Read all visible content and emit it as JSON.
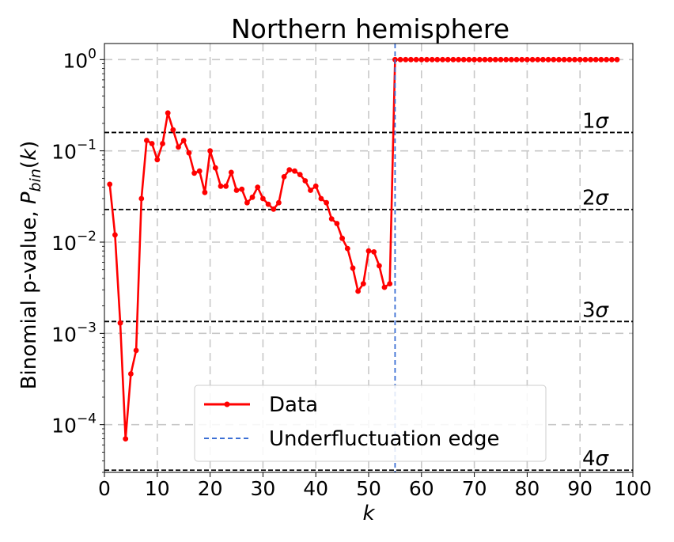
{
  "chart_data": {
    "type": "line",
    "title": "Northern hemisphere",
    "xlabel": "k",
    "ylabel": "Binomial p-value, P_bin(k)",
    "ylabel_parts": {
      "prefix": "Binomial p-value, ",
      "symbol": "P",
      "subscript": "bin",
      "arg_open": "(",
      "arg": "k",
      "arg_close": ")"
    },
    "xlim": [
      0,
      100
    ],
    "ylim": [
      3e-05,
      1.5
    ],
    "yscale": "log",
    "grid": true,
    "legend_position": "lower-center",
    "x_ticks": [
      0,
      10,
      20,
      30,
      40,
      50,
      60,
      70,
      80,
      90,
      100
    ],
    "x_tick_labels": [
      "0",
      "10",
      "20",
      "30",
      "40",
      "50",
      "60",
      "70",
      "80",
      "90",
      "100"
    ],
    "y_ticks": [
      0.0001,
      0.001,
      0.01,
      0.1,
      1
    ],
    "y_tick_labels": [
      {
        "base": "10",
        "exp": "−4"
      },
      {
        "base": "10",
        "exp": "−3"
      },
      {
        "base": "10",
        "exp": "−2"
      },
      {
        "base": "10",
        "exp": "−1"
      },
      {
        "base": "10",
        "exp": "0"
      }
    ],
    "series": [
      {
        "name": "Data",
        "color": "#ff0000",
        "x": [
          1,
          2,
          3,
          4,
          5,
          6,
          7,
          8,
          9,
          10,
          11,
          12,
          13,
          14,
          15,
          16,
          17,
          18,
          19,
          20,
          21,
          22,
          23,
          24,
          25,
          26,
          27,
          28,
          29,
          30,
          31,
          32,
          33,
          34,
          35,
          36,
          37,
          38,
          39,
          40,
          41,
          42,
          43,
          44,
          45,
          46,
          47,
          48,
          49,
          50,
          51,
          52,
          53,
          54,
          55,
          56,
          57,
          58,
          59,
          60,
          61,
          62,
          63,
          64,
          65,
          66,
          67,
          68,
          69,
          70,
          71,
          72,
          73,
          74,
          75,
          76,
          77,
          78,
          79,
          80,
          81,
          82,
          83,
          84,
          85,
          86,
          87,
          88,
          89,
          90,
          91,
          92,
          93,
          94,
          95,
          96,
          97
        ],
        "y": [
          0.043,
          0.012,
          0.0013,
          7e-05,
          0.00036,
          0.00065,
          0.03,
          0.13,
          0.12,
          0.08,
          0.12,
          0.26,
          0.17,
          0.11,
          0.13,
          0.095,
          0.057,
          0.06,
          0.035,
          0.1,
          0.065,
          0.041,
          0.041,
          0.058,
          0.037,
          0.038,
          0.027,
          0.031,
          0.04,
          0.03,
          0.026,
          0.023,
          0.027,
          0.052,
          0.062,
          0.06,
          0.055,
          0.047,
          0.037,
          0.041,
          0.03,
          0.027,
          0.018,
          0.016,
          0.011,
          0.0085,
          0.0052,
          0.0029,
          0.0035,
          0.008,
          0.0078,
          0.0055,
          0.0032,
          0.0035,
          1,
          1,
          1,
          1,
          1,
          1,
          1,
          1,
          1,
          1,
          1,
          1,
          1,
          1,
          1,
          1,
          1,
          1,
          1,
          1,
          1,
          1,
          1,
          1,
          1,
          1,
          1,
          1,
          1,
          1,
          1,
          1,
          1,
          1,
          1,
          1,
          1,
          1,
          1,
          1,
          1,
          1,
          1
        ]
      },
      {
        "name": "Underfluctuation edge",
        "color": "#3b6fd4",
        "style": "dashed-vertical",
        "x_value": 55
      }
    ],
    "sigma_lines": [
      {
        "label": "1σ",
        "y": 0.159
      },
      {
        "label": "2σ",
        "y": 0.0228
      },
      {
        "label": "3σ",
        "y": 0.00135
      },
      {
        "label": "4σ",
        "y": 3.17e-05
      }
    ],
    "legend_entries": [
      "Data",
      "Underfluctuation edge"
    ]
  }
}
